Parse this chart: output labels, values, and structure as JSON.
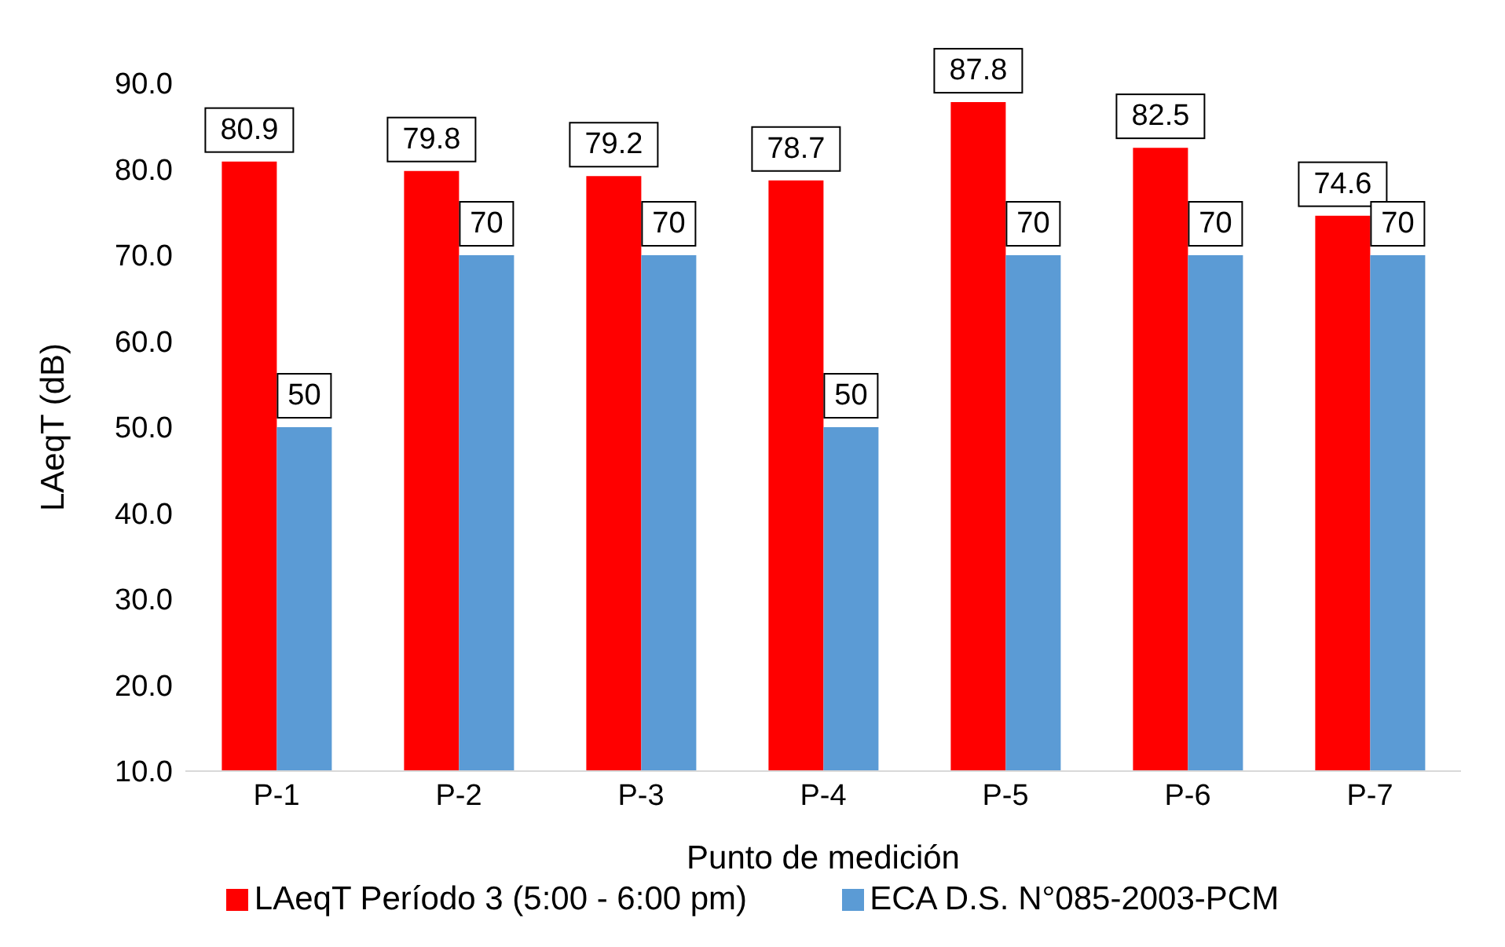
{
  "chart_data": {
    "type": "bar",
    "xlabel": "Punto de medición",
    "ylabel": "LAeqT (dB)",
    "categories": [
      "P-1",
      "P-2",
      "P-3",
      "P-4",
      "P-5",
      "P-6",
      "P-7"
    ],
    "series": [
      {
        "name": "LAeqT Período 3 (5:00 - 6:00 pm)",
        "color": "#ff0000",
        "values": [
          80.9,
          79.8,
          79.2,
          78.7,
          87.8,
          82.5,
          74.6
        ]
      },
      {
        "name": "ECA D.S. N°085-2003-PCM",
        "color": "#5b9bd5",
        "values": [
          50,
          70,
          70,
          50,
          70,
          70,
          70
        ]
      }
    ],
    "ylim": [
      10,
      90
    ],
    "yticks": [
      {
        "value": 10,
        "label": "10.0"
      },
      {
        "value": 20,
        "label": "20.0"
      },
      {
        "value": 30,
        "label": "30.0"
      },
      {
        "value": 40,
        "label": "40.0"
      },
      {
        "value": 50,
        "label": "50.0"
      },
      {
        "value": 60,
        "label": "60.0"
      },
      {
        "value": 70,
        "label": "70.0"
      },
      {
        "value": 80,
        "label": "80.0"
      },
      {
        "value": 90,
        "label": "90.0"
      }
    ],
    "grid": false,
    "legend": "bottom",
    "data_labels": true
  }
}
